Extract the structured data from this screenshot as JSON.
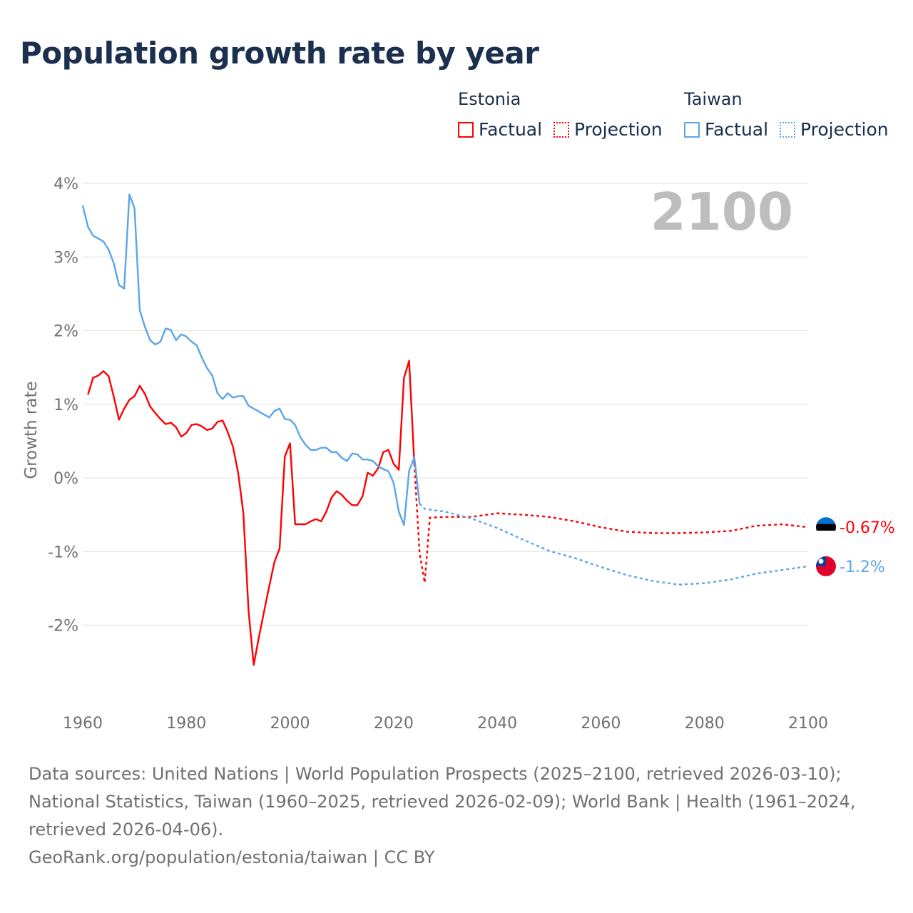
{
  "title": "Population growth rate by year",
  "legend": {
    "groups": [
      {
        "name": "Estonia",
        "color": "#ff0000",
        "factual": "Factual",
        "projection": "Projection"
      },
      {
        "name": "Taiwan",
        "color": "#5ba4ea",
        "factual": "Factual",
        "projection": "Projection"
      }
    ]
  },
  "footer": {
    "sources": "Data sources: United Nations | World Population Prospects (2025–2100, retrieved 2026-03-10); National Statistics, Taiwan (1960–2025, retrieved 2026-02-09); World Bank | Health (1961–2024, retrieved 2026-04-06).",
    "link": "GeoRank.org/population/estonia/taiwan | CC BY"
  },
  "chart_data": {
    "type": "line",
    "title": "Population growth rate by year",
    "ylabel": "Growth rate",
    "xlabel": "",
    "year_watermark": "2100",
    "xlim": [
      1960,
      2100
    ],
    "ylim": [
      -2.8,
      4.0
    ],
    "xticks": [
      1960,
      1980,
      2000,
      2020,
      2040,
      2060,
      2080,
      2100
    ],
    "xtick_labels": [
      "1960",
      "1980",
      "2000",
      "2020",
      "2040",
      "2060",
      "2080",
      "2100"
    ],
    "yticks": [
      4,
      3,
      2,
      1,
      0,
      -1,
      -2
    ],
    "ytick_labels": [
      "4%",
      "3%",
      "2%",
      "1%",
      "0%",
      "-1%",
      "-2%"
    ],
    "grid": true,
    "series": [
      {
        "name": "Estonia",
        "color": "#ff0000",
        "end_label": "-0.67%",
        "factual": {
          "x": [
            1961,
            1962,
            1963,
            1964,
            1965,
            1966,
            1967,
            1968,
            1969,
            1970,
            1971,
            1972,
            1973,
            1974,
            1975,
            1976,
            1977,
            1978,
            1979,
            1980,
            1981,
            1982,
            1983,
            1984,
            1985,
            1986,
            1987,
            1988,
            1989,
            1990,
            1991,
            1992,
            1993,
            1994,
            1995,
            1996,
            1997,
            1998,
            1999,
            2000,
            2001,
            2002,
            2003,
            2004,
            2005,
            2006,
            2007,
            2008,
            2009,
            2010,
            2011,
            2012,
            2013,
            2014,
            2015,
            2016,
            2017,
            2018,
            2019,
            2020,
            2021,
            2022,
            2023,
            2024
          ],
          "y": [
            1.13,
            1.36,
            1.39,
            1.45,
            1.38,
            1.1,
            0.79,
            0.94,
            1.06,
            1.11,
            1.25,
            1.14,
            0.97,
            0.88,
            0.8,
            0.73,
            0.75,
            0.69,
            0.56,
            0.61,
            0.72,
            0.73,
            0.7,
            0.65,
            0.67,
            0.76,
            0.78,
            0.62,
            0.42,
            0.07,
            -0.48,
            -1.81,
            -2.54,
            -2.16,
            -1.81,
            -1.47,
            -1.14,
            -0.96,
            0.29,
            0.47,
            -0.63,
            -0.63,
            -0.63,
            -0.59,
            -0.56,
            -0.59,
            -0.46,
            -0.27,
            -0.18,
            -0.23,
            -0.31,
            -0.37,
            -0.37,
            -0.25,
            0.07,
            0.03,
            0.13,
            0.35,
            0.38,
            0.19,
            0.11,
            1.36,
            1.59,
            0.19
          ]
        },
        "projection": {
          "x": [
            2024,
            2025,
            2026,
            2027,
            2030,
            2035,
            2040,
            2045,
            2050,
            2055,
            2060,
            2065,
            2070,
            2075,
            2080,
            2085,
            2090,
            2095,
            2100
          ],
          "y": [
            0.19,
            -1.02,
            -1.42,
            -0.54,
            -0.53,
            -0.53,
            -0.48,
            -0.5,
            -0.53,
            -0.59,
            -0.67,
            -0.73,
            -0.75,
            -0.75,
            -0.74,
            -0.72,
            -0.65,
            -0.63,
            -0.67
          ]
        }
      },
      {
        "name": "Taiwan",
        "color": "#5ba4ea",
        "end_label": "-1.2%",
        "factual": {
          "x": [
            1960,
            1961,
            1962,
            1963,
            1964,
            1965,
            1966,
            1967,
            1968,
            1969,
            1970,
            1971,
            1972,
            1973,
            1974,
            1975,
            1976,
            1977,
            1978,
            1979,
            1980,
            1981,
            1982,
            1983,
            1984,
            1985,
            1986,
            1987,
            1988,
            1989,
            1990,
            1991,
            1992,
            1993,
            1994,
            1995,
            1996,
            1997,
            1998,
            1999,
            2000,
            2001,
            2002,
            2003,
            2004,
            2005,
            2006,
            2007,
            2008,
            2009,
            2010,
            2011,
            2012,
            2013,
            2014,
            2015,
            2016,
            2017,
            2018,
            2019,
            2020,
            2021,
            2022,
            2023,
            2024,
            2025
          ],
          "y": [
            3.7,
            3.41,
            3.29,
            3.25,
            3.21,
            3.1,
            2.91,
            2.62,
            2.57,
            3.85,
            3.66,
            2.28,
            2.05,
            1.87,
            1.81,
            1.85,
            2.03,
            2.01,
            1.87,
            1.95,
            1.92,
            1.85,
            1.8,
            1.63,
            1.49,
            1.39,
            1.15,
            1.07,
            1.15,
            1.09,
            1.11,
            1.11,
            0.98,
            0.94,
            0.9,
            0.86,
            0.82,
            0.91,
            0.94,
            0.8,
            0.79,
            0.72,
            0.55,
            0.45,
            0.38,
            0.38,
            0.41,
            0.41,
            0.35,
            0.35,
            0.27,
            0.23,
            0.33,
            0.32,
            0.25,
            0.25,
            0.23,
            0.16,
            0.12,
            0.09,
            -0.07,
            -0.46,
            -0.64,
            0.1,
            0.28,
            -0.35
          ]
        },
        "projection": {
          "x": [
            2025,
            2026,
            2030,
            2035,
            2040,
            2045,
            2050,
            2055,
            2060,
            2065,
            2070,
            2075,
            2080,
            2085,
            2090,
            2095,
            2100
          ],
          "y": [
            -0.35,
            -0.42,
            -0.46,
            -0.55,
            -0.68,
            -0.84,
            -0.99,
            -1.09,
            -1.21,
            -1.32,
            -1.4,
            -1.45,
            -1.43,
            -1.38,
            -1.3,
            -1.25,
            -1.2
          ]
        }
      }
    ]
  }
}
